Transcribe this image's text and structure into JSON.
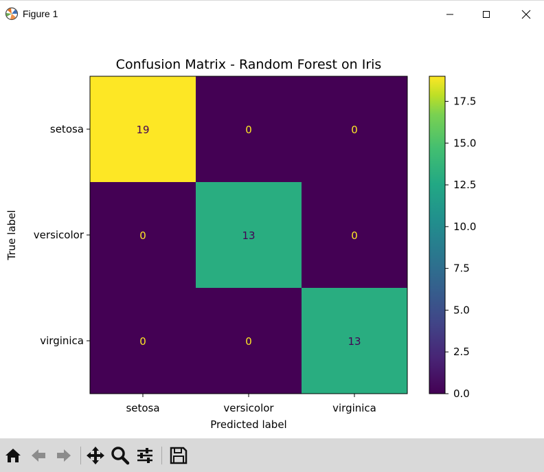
{
  "window": {
    "title": "Figure 1"
  },
  "toolbar": {
    "tools": [
      "home-icon",
      "back-icon",
      "forward-icon",
      "pan-icon",
      "zoom-icon",
      "configure-subplots-icon",
      "save-icon"
    ]
  },
  "chart_data": {
    "type": "heatmap",
    "title": "Confusion Matrix - Random Forest on Iris",
    "xlabel": "Predicted label",
    "ylabel": "True label",
    "x_categories": [
      "setosa",
      "versicolor",
      "virginica"
    ],
    "y_categories": [
      "setosa",
      "versicolor",
      "virginica"
    ],
    "values": [
      [
        19,
        0,
        0
      ],
      [
        0,
        13,
        0
      ],
      [
        0,
        0,
        13
      ]
    ],
    "colormap": "viridis",
    "colorbar": {
      "min": 0,
      "max": 19,
      "ticks": [
        "0.0",
        "2.5",
        "5.0",
        "7.5",
        "10.0",
        "12.5",
        "15.0",
        "17.5"
      ]
    },
    "colors": {
      "high": "#fde725",
      "mid_13": "#3fbc73",
      "low": "#440154",
      "text_on_dark": "#fde725",
      "text_on_light": "#440154"
    }
  }
}
